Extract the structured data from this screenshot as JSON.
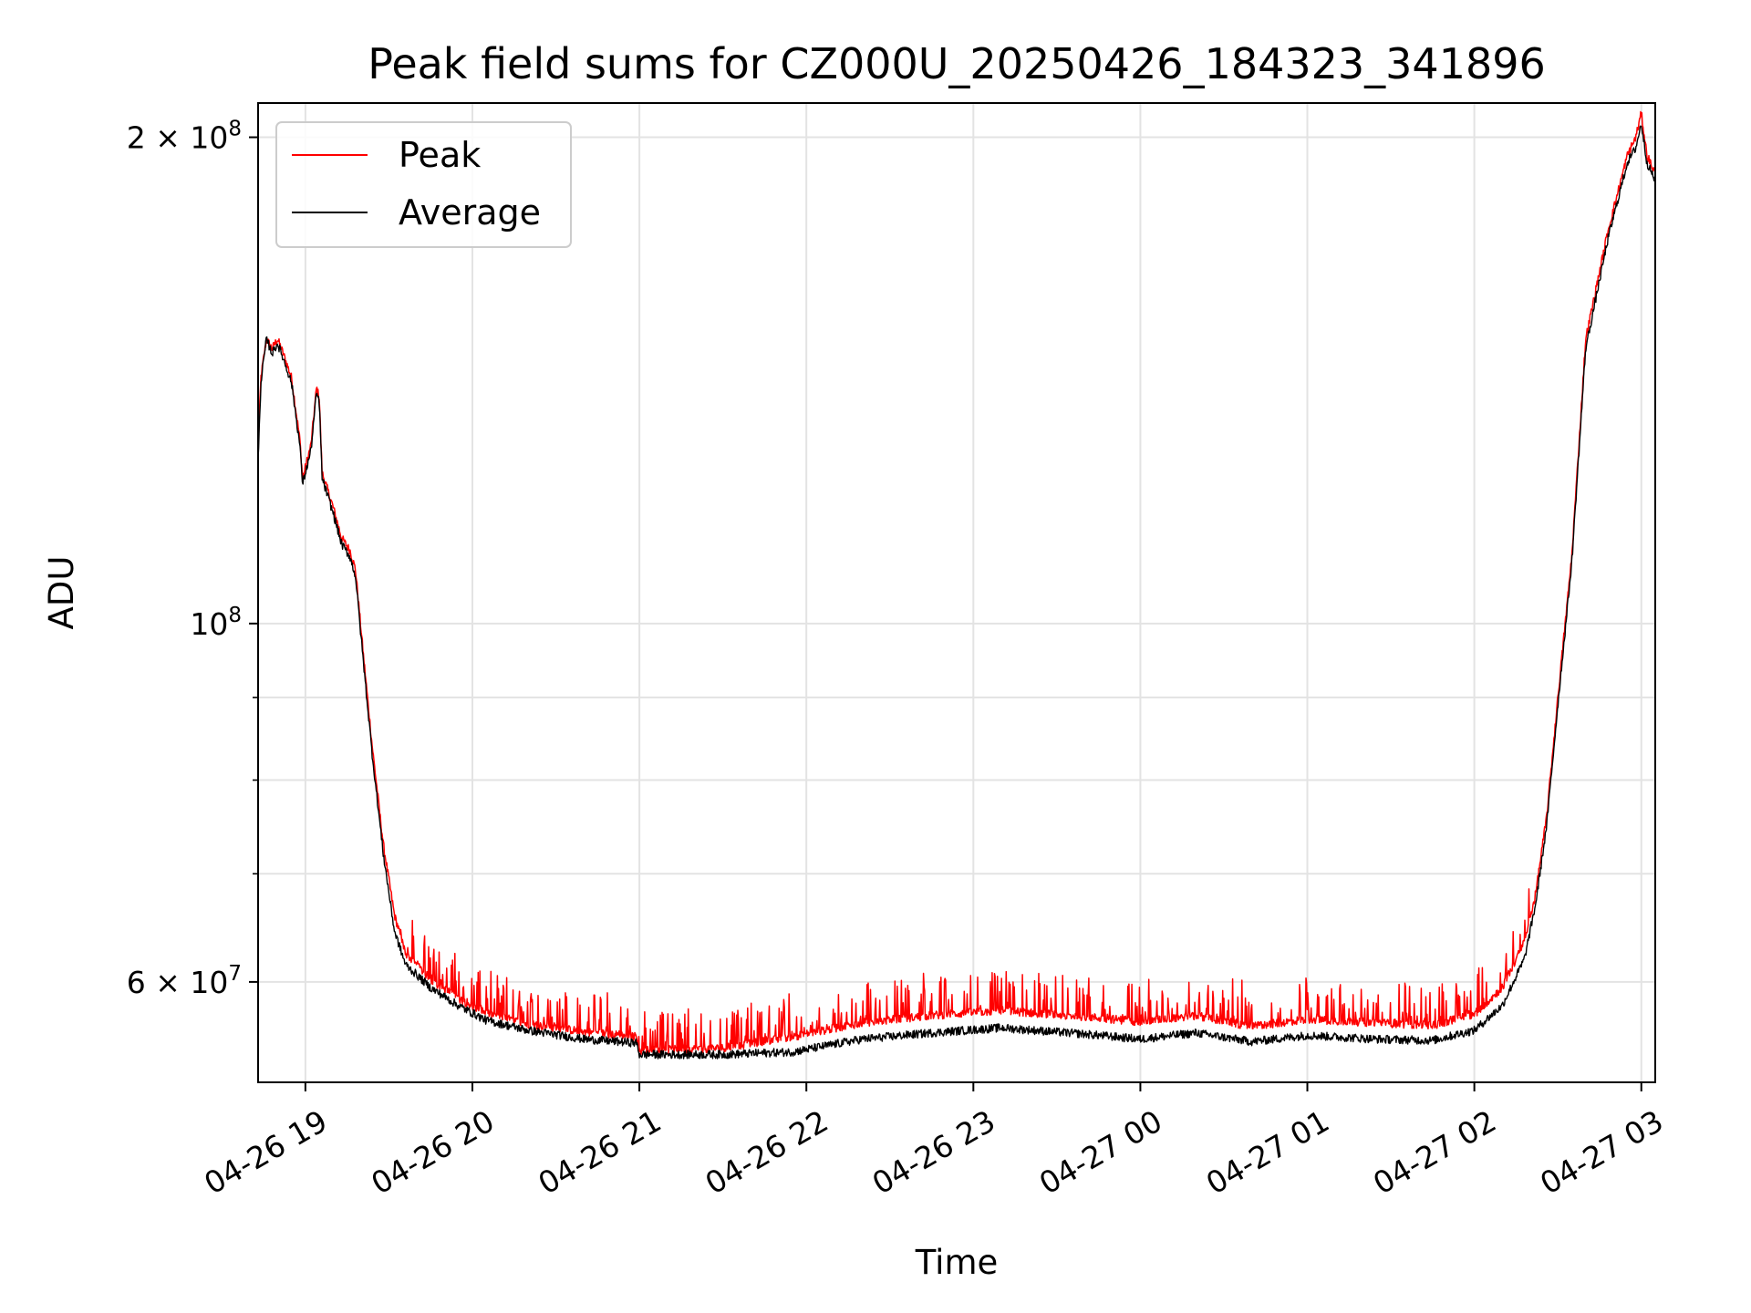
{
  "chart_data": {
    "type": "line",
    "title": "Peak field sums for CZ000U_20250426_184323_341896",
    "xlabel": "Time",
    "ylabel": "ADU",
    "yscale": "log",
    "xlim": [
      "2025-04-26 18:43",
      "2025-04-27 03:05"
    ],
    "ylim": [
      52000000,
      210000000
    ],
    "grid": true,
    "legend_position": "upper-left",
    "x_ticks": [
      {
        "t": "2025-04-26 19:00",
        "label": "04-26 19"
      },
      {
        "t": "2025-04-26 20:00",
        "label": "04-26 20"
      },
      {
        "t": "2025-04-26 21:00",
        "label": "04-26 21"
      },
      {
        "t": "2025-04-26 22:00",
        "label": "04-26 22"
      },
      {
        "t": "2025-04-26 23:00",
        "label": "04-26 23"
      },
      {
        "t": "2025-04-27 00:00",
        "label": "04-27 00"
      },
      {
        "t": "2025-04-27 01:00",
        "label": "04-27 01"
      },
      {
        "t": "2025-04-27 02:00",
        "label": "04-27 02"
      },
      {
        "t": "2025-04-27 03:00",
        "label": "04-27 03"
      }
    ],
    "y_major_ticks": [
      {
        "value": 200000000,
        "mantissa": "2",
        "exponent": "8"
      },
      {
        "value": 100000000,
        "mantissa": "",
        "exponent": "8"
      },
      {
        "value": 60000000,
        "mantissa": "6",
        "exponent": "7"
      }
    ],
    "y_minor_ticks": [
      90000000,
      80000000,
      70000000
    ],
    "series": [
      {
        "name": "Peak",
        "color": "#ff0000",
        "spiky": true,
        "points": [
          [
            "2025-04-26 18:43",
            128000000
          ],
          [
            "2025-04-26 18:44",
            142000000
          ],
          [
            "2025-04-26 18:46",
            150000000
          ],
          [
            "2025-04-26 18:48",
            148000000
          ],
          [
            "2025-04-26 18:50",
            150000000
          ],
          [
            "2025-04-26 18:52",
            147000000
          ],
          [
            "2025-04-26 18:55",
            142000000
          ],
          [
            "2025-04-26 18:58",
            130000000
          ],
          [
            "2025-04-26 18:59",
            123000000
          ],
          [
            "2025-04-26 19:02",
            129000000
          ],
          [
            "2025-04-26 19:04",
            140000000
          ],
          [
            "2025-04-26 19:05",
            138000000
          ],
          [
            "2025-04-26 19:06",
            124000000
          ],
          [
            "2025-04-26 19:10",
            118000000
          ],
          [
            "2025-04-26 19:13",
            113000000
          ],
          [
            "2025-04-26 19:16",
            111000000
          ],
          [
            "2025-04-26 19:18",
            108000000
          ],
          [
            "2025-04-26 19:21",
            95000000
          ],
          [
            "2025-04-26 19:24",
            84000000
          ],
          [
            "2025-04-26 19:28",
            73000000
          ],
          [
            "2025-04-26 19:32",
            66000000
          ],
          [
            "2025-04-26 19:36",
            62500000
          ],
          [
            "2025-04-26 19:45",
            60200000
          ],
          [
            "2025-04-26 19:55",
            58600000
          ],
          [
            "2025-04-26 20:05",
            57400000
          ],
          [
            "2025-04-26 20:20",
            56500000
          ],
          [
            "2025-04-26 20:40",
            55900000
          ],
          [
            "2025-04-26 20:59",
            55500000
          ],
          [
            "2025-04-26 21:00",
            54400000
          ],
          [
            "2025-04-26 21:30",
            54600000
          ],
          [
            "2025-04-26 21:55",
            55500000
          ],
          [
            "2025-04-26 22:20",
            56600000
          ],
          [
            "2025-04-26 22:45",
            57200000
          ],
          [
            "2025-04-26 23:10",
            57600000
          ],
          [
            "2025-04-26 23:40",
            57100000
          ],
          [
            "2025-04-27 00:00",
            56700000
          ],
          [
            "2025-04-27 00:20",
            57200000
          ],
          [
            "2025-04-27 00:40",
            56300000
          ],
          [
            "2025-04-27 01:00",
            56900000
          ],
          [
            "2025-04-27 01:25",
            56600000
          ],
          [
            "2025-04-27 01:45",
            56400000
          ],
          [
            "2025-04-27 02:00",
            57300000
          ],
          [
            "2025-04-27 02:10",
            59500000
          ],
          [
            "2025-04-27 02:18",
            63500000
          ],
          [
            "2025-04-27 02:22",
            68000000
          ],
          [
            "2025-04-27 02:26",
            76000000
          ],
          [
            "2025-04-27 02:30",
            90000000
          ],
          [
            "2025-04-27 02:35",
            110000000
          ],
          [
            "2025-04-27 02:40",
            150000000
          ],
          [
            "2025-04-27 02:48",
            175000000
          ],
          [
            "2025-04-27 02:55",
            195000000
          ],
          [
            "2025-04-27 02:58",
            200000000
          ],
          [
            "2025-04-27 03:00",
            207000000
          ],
          [
            "2025-04-27 03:02",
            195000000
          ],
          [
            "2025-04-27 03:05",
            190000000
          ]
        ]
      },
      {
        "name": "Average",
        "color": "#000000",
        "spiky": false,
        "points": [
          [
            "2025-04-26 18:43",
            126000000
          ],
          [
            "2025-04-26 18:44",
            141000000
          ],
          [
            "2025-04-26 18:46",
            150000000
          ],
          [
            "2025-04-26 18:48",
            147000000
          ],
          [
            "2025-04-26 18:50",
            149000000
          ],
          [
            "2025-04-26 18:52",
            146000000
          ],
          [
            "2025-04-26 18:55",
            141000000
          ],
          [
            "2025-04-26 18:58",
            129000000
          ],
          [
            "2025-04-26 18:59",
            122000000
          ],
          [
            "2025-04-26 19:02",
            128000000
          ],
          [
            "2025-04-26 19:04",
            139000000
          ],
          [
            "2025-04-26 19:05",
            137000000
          ],
          [
            "2025-04-26 19:06",
            123000000
          ],
          [
            "2025-04-26 19:10",
            117000000
          ],
          [
            "2025-04-26 19:13",
            112000000
          ],
          [
            "2025-04-26 19:16",
            110000000
          ],
          [
            "2025-04-26 19:18",
            107000000
          ],
          [
            "2025-04-26 19:21",
            94000000
          ],
          [
            "2025-04-26 19:24",
            83000000
          ],
          [
            "2025-04-26 19:28",
            72000000
          ],
          [
            "2025-04-26 19:32",
            64500000
          ],
          [
            "2025-04-26 19:36",
            61500000
          ],
          [
            "2025-04-26 19:45",
            59500000
          ],
          [
            "2025-04-26 19:55",
            58000000
          ],
          [
            "2025-04-26 20:05",
            56800000
          ],
          [
            "2025-04-26 20:20",
            56000000
          ],
          [
            "2025-04-26 20:40",
            55300000
          ],
          [
            "2025-04-26 20:59",
            55000000
          ],
          [
            "2025-04-26 21:00",
            54100000
          ],
          [
            "2025-04-26 21:30",
            54100000
          ],
          [
            "2025-04-26 21:55",
            54300000
          ],
          [
            "2025-04-26 22:20",
            55300000
          ],
          [
            "2025-04-26 22:45",
            55800000
          ],
          [
            "2025-04-26 23:10",
            56200000
          ],
          [
            "2025-04-26 23:40",
            55700000
          ],
          [
            "2025-04-27 00:00",
            55300000
          ],
          [
            "2025-04-27 00:20",
            55800000
          ],
          [
            "2025-04-27 00:40",
            55100000
          ],
          [
            "2025-04-27 01:00",
            55600000
          ],
          [
            "2025-04-27 01:25",
            55300000
          ],
          [
            "2025-04-27 01:45",
            55200000
          ],
          [
            "2025-04-27 02:00",
            56000000
          ],
          [
            "2025-04-27 02:10",
            58000000
          ],
          [
            "2025-04-27 02:18",
            62000000
          ],
          [
            "2025-04-27 02:22",
            67000000
          ],
          [
            "2025-04-27 02:26",
            75000000
          ],
          [
            "2025-04-27 02:30",
            89000000
          ],
          [
            "2025-04-27 02:35",
            109000000
          ],
          [
            "2025-04-27 02:40",
            148000000
          ],
          [
            "2025-04-27 02:48",
            173000000
          ],
          [
            "2025-04-27 02:55",
            193000000
          ],
          [
            "2025-04-27 02:58",
            197000000
          ],
          [
            "2025-04-27 03:00",
            204000000
          ],
          [
            "2025-04-27 03:02",
            193000000
          ],
          [
            "2025-04-27 03:05",
            188000000
          ]
        ]
      }
    ]
  }
}
